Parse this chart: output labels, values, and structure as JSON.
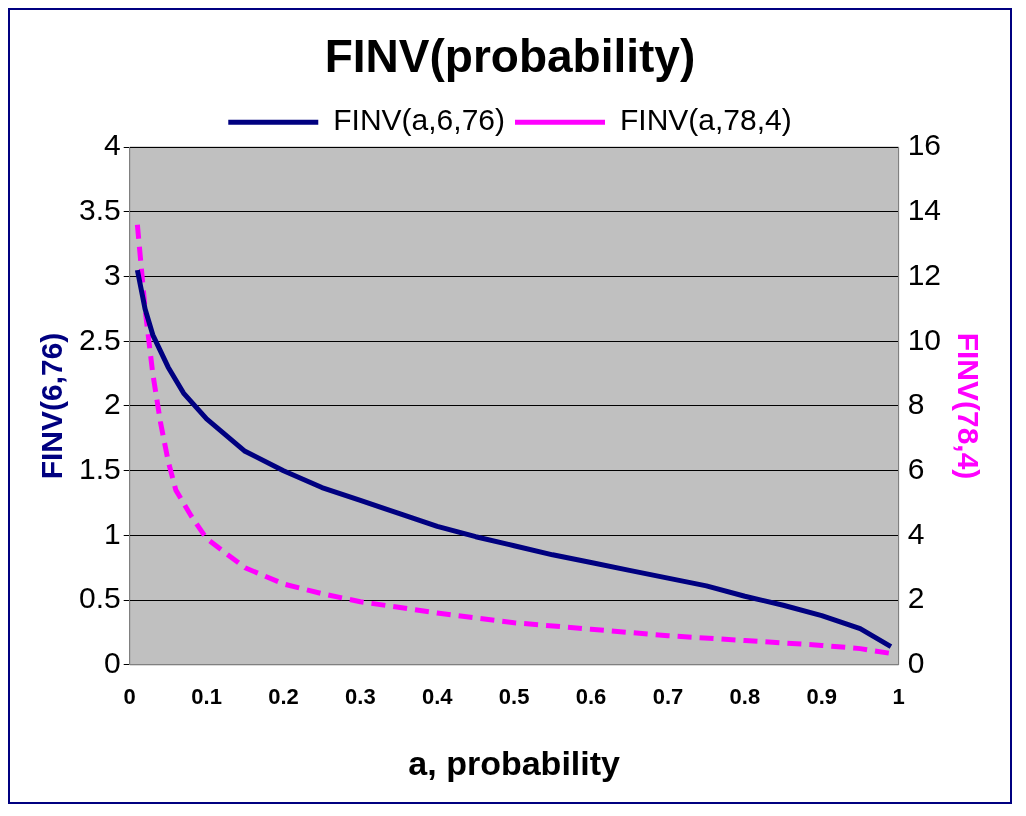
{
  "chart_data": {
    "type": "line",
    "title": "FINV(probability)",
    "xlabel": "a, probability",
    "ylabel": "FINV(6,76)",
    "y2label": "FINV(78,4)",
    "xlim": [
      0,
      1
    ],
    "xticks": [
      0,
      0.1,
      0.2,
      0.3,
      0.4,
      0.5,
      0.6,
      0.7,
      0.8,
      0.9,
      1
    ],
    "ylim": [
      0,
      4
    ],
    "yticks": [
      0,
      0.5,
      1,
      1.5,
      2,
      2.5,
      3,
      3.5,
      4
    ],
    "y2lim": [
      0,
      16
    ],
    "y2ticks": [
      0,
      2,
      4,
      6,
      8,
      10,
      12,
      14,
      16
    ],
    "grid": "y",
    "legend": "top",
    "marker": "none",
    "series": [
      {
        "name": "FINV(a,6,76)",
        "color": "#000080",
        "line_style": "solid",
        "x": [
          0.01,
          0.02,
          0.03,
          0.05,
          0.07,
          0.1,
          0.15,
          0.2,
          0.25,
          0.3,
          0.35,
          0.4,
          0.45,
          0.5,
          0.55,
          0.6,
          0.65,
          0.7,
          0.75,
          0.8,
          0.85,
          0.9,
          0.95,
          0.99
        ],
        "values": [
          3.05,
          2.75,
          2.55,
          2.3,
          2.1,
          1.9,
          1.65,
          1.5,
          1.37,
          1.27,
          1.17,
          1.07,
          0.99,
          0.92,
          0.85,
          0.79,
          0.73,
          0.67,
          0.61,
          0.53,
          0.46,
          0.38,
          0.28,
          0.14
        ]
      },
      {
        "name": "FINV(a,78,4)",
        "color": "#ff00ff",
        "line_style": "dashed",
        "axis": "y2",
        "x": [
          0.01,
          0.02,
          0.03,
          0.04,
          0.05,
          0.06,
          0.08,
          0.1,
          0.15,
          0.2,
          0.25,
          0.3,
          0.4,
          0.5,
          0.6,
          0.7,
          0.8,
          0.9,
          0.95,
          0.99
        ],
        "values": [
          13.6,
          11,
          9,
          7.5,
          6.3,
          5.4,
          4.6,
          3.9,
          3.0,
          2.5,
          2.2,
          1.95,
          1.6,
          1.3,
          1.1,
          0.9,
          0.75,
          0.6,
          0.5,
          0.35
        ]
      }
    ]
  }
}
